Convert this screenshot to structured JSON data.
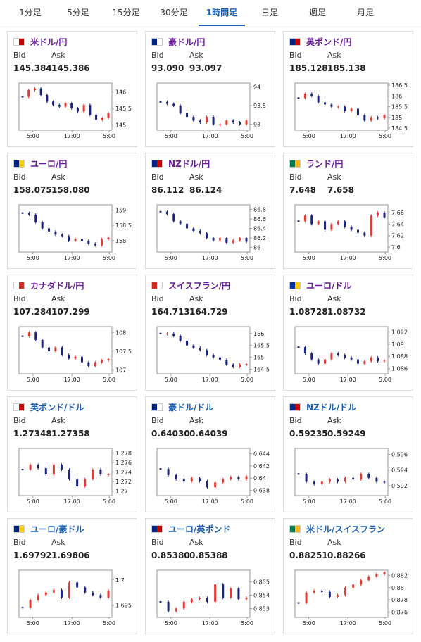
{
  "tabs": [
    "1分足",
    "5分足",
    "15分足",
    "30分足",
    "1時間足",
    "日足",
    "週足",
    "月足"
  ],
  "active_tab": 4,
  "cards": [
    {
      "name": "米ドル/円",
      "bid_label": "Bid",
      "ask_label": "Ask",
      "bid": "145.384",
      "ask": "145.386",
      "chart": {
        "type": "candlestick",
        "ylim": [
          144.9,
          146.2
        ],
        "yticks": [
          146,
          145.5,
          145
        ],
        "x_labels": [
          "5:00",
          "17:00",
          "5:00"
        ],
        "values": [
          145.85,
          146.05,
          146.1,
          145.9,
          145.7,
          145.6,
          145.55,
          145.65,
          145.5,
          145.4,
          145.6,
          145.3,
          145.15,
          145.2,
          145.35
        ]
      }
    },
    {
      "name": "豪ドル/円",
      "bid_label": "Bid",
      "ask_label": "Ask",
      "bid": "93.090",
      "ask": "93.097",
      "chart": {
        "type": "candlestick",
        "ylim": [
          92.9,
          94.05
        ],
        "yticks": [
          94,
          93.5,
          93
        ],
        "x_labels": [
          "5:00",
          "17:00",
          "5:00"
        ],
        "values": [
          93.6,
          93.55,
          93.5,
          93.3,
          93.2,
          93.1,
          93.05,
          93.2,
          93.0,
          93.0,
          93.1,
          93.05,
          93.0,
          93.1
        ]
      }
    },
    {
      "name": "英ポンド/円",
      "bid_label": "Bid",
      "ask_label": "Ask",
      "bid": "185.128",
      "ask": "185.138",
      "chart": {
        "type": "candlestick",
        "ylim": [
          184.5,
          186.5
        ],
        "yticks": [
          186.5,
          186,
          185.5,
          185,
          184.5
        ],
        "x_labels": [
          "5:00",
          "17:00",
          "5:00"
        ],
        "values": [
          185.9,
          186.1,
          186.0,
          185.7,
          185.6,
          185.5,
          185.5,
          185.3,
          185.4,
          185.1,
          184.85,
          185.0,
          184.95,
          185.1
        ]
      }
    },
    {
      "name": "ユーロ/円",
      "bid_label": "Bid",
      "ask_label": "Ask",
      "bid": "158.075",
      "ask": "158.080",
      "chart": {
        "type": "candlestick",
        "ylim": [
          157.7,
          159.1
        ],
        "yticks": [
          159,
          158.5,
          158
        ],
        "x_labels": [
          "5:00",
          "17:00",
          "5:00"
        ],
        "values": [
          158.9,
          158.85,
          158.6,
          158.4,
          158.3,
          158.2,
          158.15,
          158.0,
          158.05,
          158.0,
          157.9,
          157.85,
          158.05,
          158.1
        ]
      }
    },
    {
      "name": "NZドル/円",
      "bid_label": "Bid",
      "ask_label": "Ask",
      "bid": "86.112",
      "ask": "86.124",
      "chart": {
        "type": "candlestick",
        "ylim": [
          85.95,
          86.85
        ],
        "yticks": [
          86.8,
          86.6,
          86.4,
          86.2,
          86
        ],
        "x_labels": [
          "5:00",
          "17:00",
          "5:00"
        ],
        "values": [
          86.75,
          86.7,
          86.55,
          86.5,
          86.4,
          86.35,
          86.3,
          86.2,
          86.15,
          86.2,
          86.1,
          86.15,
          86.2,
          86.12
        ]
      }
    },
    {
      "name": "ランド/円",
      "bid_label": "Bid",
      "ask_label": "Ask",
      "bid": "7.648",
      "ask": "7.658",
      "chart": {
        "type": "candlestick",
        "ylim": [
          7.595,
          7.67
        ],
        "yticks": [
          7.66,
          7.64,
          7.62,
          7.6
        ],
        "x_labels": [
          "5:00",
          "17:00",
          "5:00"
        ],
        "values": [
          7.645,
          7.655,
          7.64,
          7.645,
          7.63,
          7.64,
          7.645,
          7.635,
          7.63,
          7.625,
          7.62,
          7.655,
          7.66,
          7.652
        ]
      }
    },
    {
      "name": "カナダドル/円",
      "bid_label": "Bid",
      "ask_label": "Ask",
      "bid": "107.284",
      "ask": "107.299",
      "chart": {
        "type": "candlestick",
        "ylim": [
          106.95,
          108.1
        ],
        "yticks": [
          108,
          107.5,
          107
        ],
        "x_labels": [
          "5:00",
          "17:00",
          "5:00"
        ],
        "values": [
          107.9,
          108.0,
          107.8,
          107.6,
          107.5,
          107.6,
          107.4,
          107.3,
          107.35,
          107.2,
          107.1,
          107.2,
          107.25,
          107.29
        ]
      }
    },
    {
      "name": "スイスフラン/円",
      "bid_label": "Bid",
      "ask_label": "Ask",
      "bid": "164.713",
      "ask": "164.729",
      "chart": {
        "type": "candlestick",
        "ylim": [
          164.4,
          166.2
        ],
        "yticks": [
          166,
          165.5,
          165,
          164.5
        ],
        "x_labels": [
          "5:00",
          "17:00",
          "5:00"
        ],
        "values": [
          166.0,
          166.0,
          165.9,
          165.7,
          165.5,
          165.4,
          165.3,
          165.1,
          165.0,
          164.9,
          164.7,
          164.6,
          164.7,
          164.72
        ]
      }
    },
    {
      "name": "ユーロ/ドル",
      "bid_label": "Bid",
      "ask_label": "Ask",
      "bid": "1.08728",
      "ask": "1.08732",
      "chart": {
        "type": "candlestick",
        "ylim": [
          1.0855,
          1.0925
        ],
        "yticks": [
          1.092,
          1.09,
          1.088,
          1.086
        ],
        "x_labels": [
          "5:00",
          "17:00",
          "5:00"
        ],
        "values": [
          1.0895,
          1.0885,
          1.0875,
          1.0868,
          1.0875,
          1.0885,
          1.0882,
          1.0878,
          1.0875,
          1.0868,
          1.0872,
          1.0878,
          1.0872,
          1.0873
        ]
      }
    },
    {
      "name": "英ポンド/ドル",
      "bid_label": "Bid",
      "ask_label": "Ask",
      "bid": "1.27348",
      "ask": "1.27358",
      "chart": {
        "type": "candlestick",
        "ylim": [
          1.2695,
          1.2785
        ],
        "yticks": [
          1.278,
          1.276,
          1.274,
          1.272,
          1.27
        ],
        "x_labels": [
          "5:00",
          "17:00",
          "5:00"
        ],
        "values": [
          1.2745,
          1.2755,
          1.2748,
          1.2735,
          1.2755,
          1.2745,
          1.2725,
          1.271,
          1.2725,
          1.2745,
          1.2735,
          1.2735
        ]
      }
    },
    {
      "name": "豪ドル/ドル",
      "bid_label": "Bid",
      "ask_label": "Ask",
      "bid": "0.64030",
      "ask": "0.64039",
      "chart": {
        "type": "candlestick",
        "ylim": [
          0.6375,
          0.6445
        ],
        "yticks": [
          0.644,
          0.642,
          0.64,
          0.638
        ],
        "x_labels": [
          "5:00",
          "17:00",
          "5:00"
        ],
        "values": [
          0.6415,
          0.6405,
          0.6398,
          0.6395,
          0.64,
          0.6395,
          0.6385,
          0.6393,
          0.6398,
          0.6402,
          0.6398,
          0.6403
        ]
      }
    },
    {
      "name": "NZドル/ドル",
      "bid_label": "Bid",
      "ask_label": "Ask",
      "bid": "0.59235",
      "ask": "0.59249",
      "chart": {
        "type": "candlestick",
        "ylim": [
          0.591,
          0.5965
        ],
        "yticks": [
          0.596,
          0.594,
          0.592
        ],
        "x_labels": [
          "5:00",
          "17:00",
          "5:00"
        ],
        "values": [
          0.5935,
          0.5925,
          0.5922,
          0.5925,
          0.5928,
          0.5925,
          0.593,
          0.5928,
          0.5935,
          0.593,
          0.5925,
          0.5924
        ]
      }
    },
    {
      "name": "ユーロ/豪ドル",
      "bid_label": "Bid",
      "ask_label": "Ask",
      "bid": "1.69792",
      "ask": "1.69806",
      "chart": {
        "type": "candlestick",
        "ylim": [
          1.693,
          1.7015
        ],
        "yticks": [
          1.7,
          1.695
        ],
        "x_labels": [
          "5:00",
          "17:00",
          "5:00"
        ],
        "values": [
          1.6945,
          1.696,
          1.697,
          1.6975,
          1.698,
          1.6965,
          1.6995,
          1.6985,
          1.6975,
          1.697,
          1.6965,
          1.6979
        ]
      }
    },
    {
      "name": "ユーロ/英ポンド",
      "bid_label": "Bid",
      "ask_label": "Ask",
      "bid": "0.85380",
      "ask": "0.85388",
      "chart": {
        "type": "candlestick",
        "ylim": [
          0.8525,
          0.8557
        ],
        "yticks": [
          0.855,
          0.854,
          0.853
        ],
        "x_labels": [
          "5:00",
          "17:00",
          "5:00"
        ],
        "values": [
          0.8535,
          0.8528,
          0.853,
          0.8535,
          0.8537,
          0.8538,
          0.8535,
          0.8548,
          0.8538,
          0.8545,
          0.8537,
          0.8538
        ]
      }
    },
    {
      "name": "米ドル/スイスフラン",
      "bid_label": "Bid",
      "ask_label": "Ask",
      "bid": "0.88251",
      "ask": "0.88266",
      "chart": {
        "type": "candlestick",
        "ylim": [
          0.8755,
          0.8825
        ],
        "yticks": [
          0.882,
          0.88,
          0.878,
          0.876
        ],
        "x_labels": [
          "5:00",
          "17:00",
          "5:00"
        ],
        "values": [
          0.8775,
          0.8792,
          0.8795,
          0.8793,
          0.8785,
          0.8788,
          0.88,
          0.8805,
          0.8812,
          0.8818,
          0.8822,
          0.8825
        ]
      }
    }
  ]
}
